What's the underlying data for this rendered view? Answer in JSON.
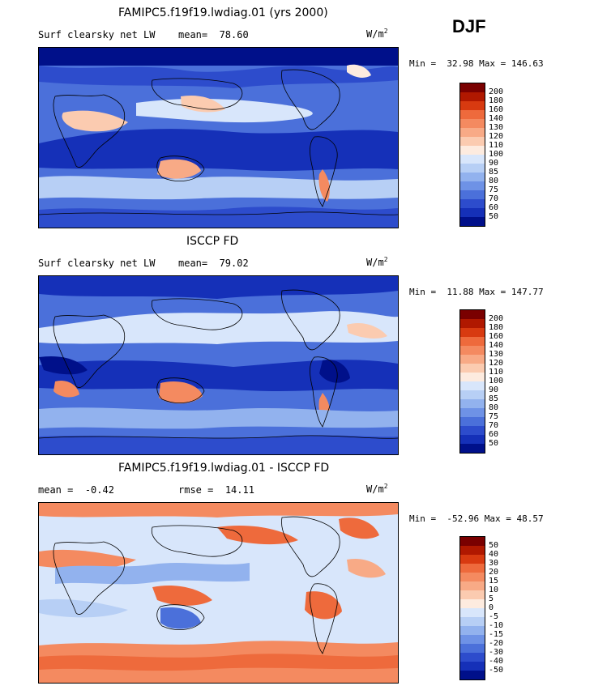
{
  "season": "DJF",
  "units": "W/m",
  "units_sup": "2",
  "panels": [
    {
      "title": "FAMIPC5.f19f19.lwdiag.01 (yrs 2000)",
      "variable": "Surf clearsky net LW",
      "stat1_label": "mean=",
      "stat1_value": "78.60",
      "stat2_label": "",
      "stat2_value": "",
      "min_label": "Min =",
      "min_value": "32.98",
      "max_label": "Max =",
      "max_value": "146.63",
      "levels": [
        "200",
        "180",
        "160",
        "140",
        "130",
        "120",
        "110",
        "100",
        "90",
        "85",
        "80",
        "75",
        "70",
        "60",
        "50"
      ],
      "colors": [
        "#7a0000",
        "#b01800",
        "#d83a10",
        "#ee6a3c",
        "#f48a60",
        "#f8aa86",
        "#fbcbb0",
        "#fdebdf",
        "#d8e6fb",
        "#b7cff5",
        "#92b2ee",
        "#6e92e6",
        "#4b70da",
        "#2d4ccc",
        "#1530b8",
        "#00108a"
      ]
    },
    {
      "title": "ISCCP FD",
      "variable": "Surf clearsky net LW",
      "stat1_label": "mean=",
      "stat1_value": "79.02",
      "stat2_label": "",
      "stat2_value": "",
      "min_label": "Min =",
      "min_value": "11.88",
      "max_label": "Max =",
      "max_value": "147.77",
      "levels": [
        "200",
        "180",
        "160",
        "140",
        "130",
        "120",
        "110",
        "100",
        "90",
        "85",
        "80",
        "75",
        "70",
        "60",
        "50"
      ],
      "colors": [
        "#7a0000",
        "#b01800",
        "#d83a10",
        "#ee6a3c",
        "#f48a60",
        "#f8aa86",
        "#fbcbb0",
        "#fdebdf",
        "#d8e6fb",
        "#b7cff5",
        "#92b2ee",
        "#6e92e6",
        "#4b70da",
        "#2d4ccc",
        "#1530b8",
        "#00108a"
      ]
    },
    {
      "title": "FAMIPC5.f19f19.lwdiag.01 - ISCCP FD",
      "variable": "",
      "stat1_label": "mean =",
      "stat1_value": "-0.42",
      "stat2_label": "rmse =",
      "stat2_value": "14.11",
      "min_label": "Min =",
      "min_value": "-52.96",
      "max_label": "Max =",
      "max_value": "48.57",
      "levels": [
        "50",
        "40",
        "30",
        "20",
        "15",
        "10",
        "5",
        "0",
        "-5",
        "-10",
        "-15",
        "-20",
        "-30",
        "-40",
        "-50"
      ],
      "colors": [
        "#7a0000",
        "#b01800",
        "#d83a10",
        "#ee6a3c",
        "#f48a60",
        "#f8aa86",
        "#fbcbb0",
        "#fdebdf",
        "#d8e6fb",
        "#b7cff5",
        "#92b2ee",
        "#6e92e6",
        "#4b70da",
        "#2d4ccc",
        "#1530b8",
        "#00108a"
      ]
    }
  ]
}
